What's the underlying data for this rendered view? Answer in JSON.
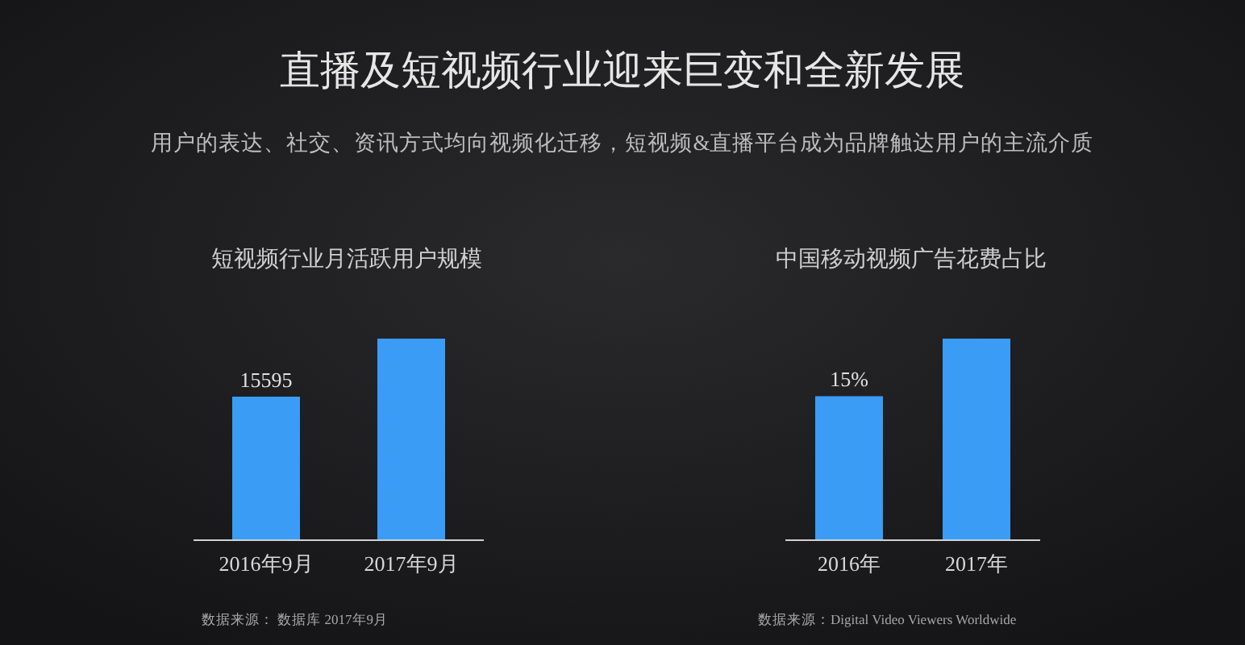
{
  "chart_data": [
    {
      "type": "other",
      "title": "直播及短视频行业迎来巨变和全新发展",
      "subtitle": "用户的表达、社交、资讯方式均向视频化迁移，短视频&直播平台成为品牌触达用户的主流介质"
    },
    {
      "type": "bar",
      "title": "短视频行业月活跃用户规模",
      "categories": [
        "2016年9月",
        "2017年9月"
      ],
      "values": [
        15595,
        21900
      ],
      "value_labels": [
        "15595",
        null
      ],
      "color": "#3a9cf5",
      "annotations": [
        "数据来源： 数据库 2017年9月"
      ]
    },
    {
      "type": "bar",
      "title": "中国移动视频广告花费占比",
      "categories": [
        "2016年",
        "2017年"
      ],
      "values": [
        15,
        21
      ],
      "value_labels": [
        "15%",
        null
      ],
      "color": "#3a9cf5",
      "annotations": [
        "数据来源：Digital Video Viewers Worldwide"
      ]
    }
  ]
}
